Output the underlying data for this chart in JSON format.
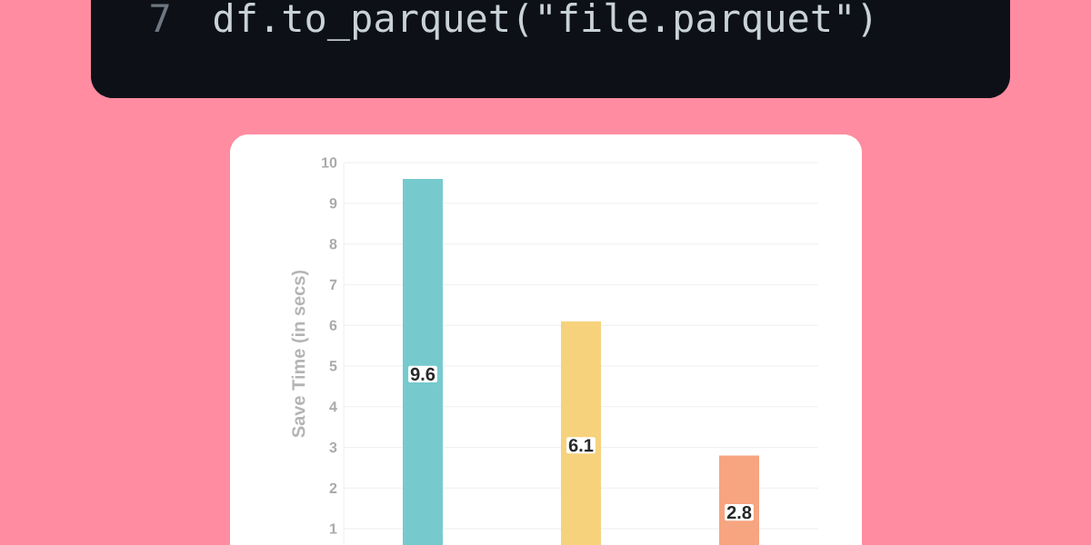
{
  "chart_data": {
    "type": "bar",
    "ylabel": "Save Time (in secs)",
    "categories": [
      null,
      null,
      null
    ],
    "values": [
      9.6,
      6.1,
      2.8
    ],
    "colors": [
      "#76cace",
      "#f6d27c",
      "#f7a480"
    ],
    "ylim": [
      0.6,
      10
    ],
    "yticks": [
      1,
      2,
      3,
      4,
      5,
      6,
      7,
      8,
      9,
      10
    ],
    "grid": "y",
    "data_labels": true,
    "annotations": [
      "7",
      "df.to_parquet(\"file.parquet\")"
    ]
  }
}
